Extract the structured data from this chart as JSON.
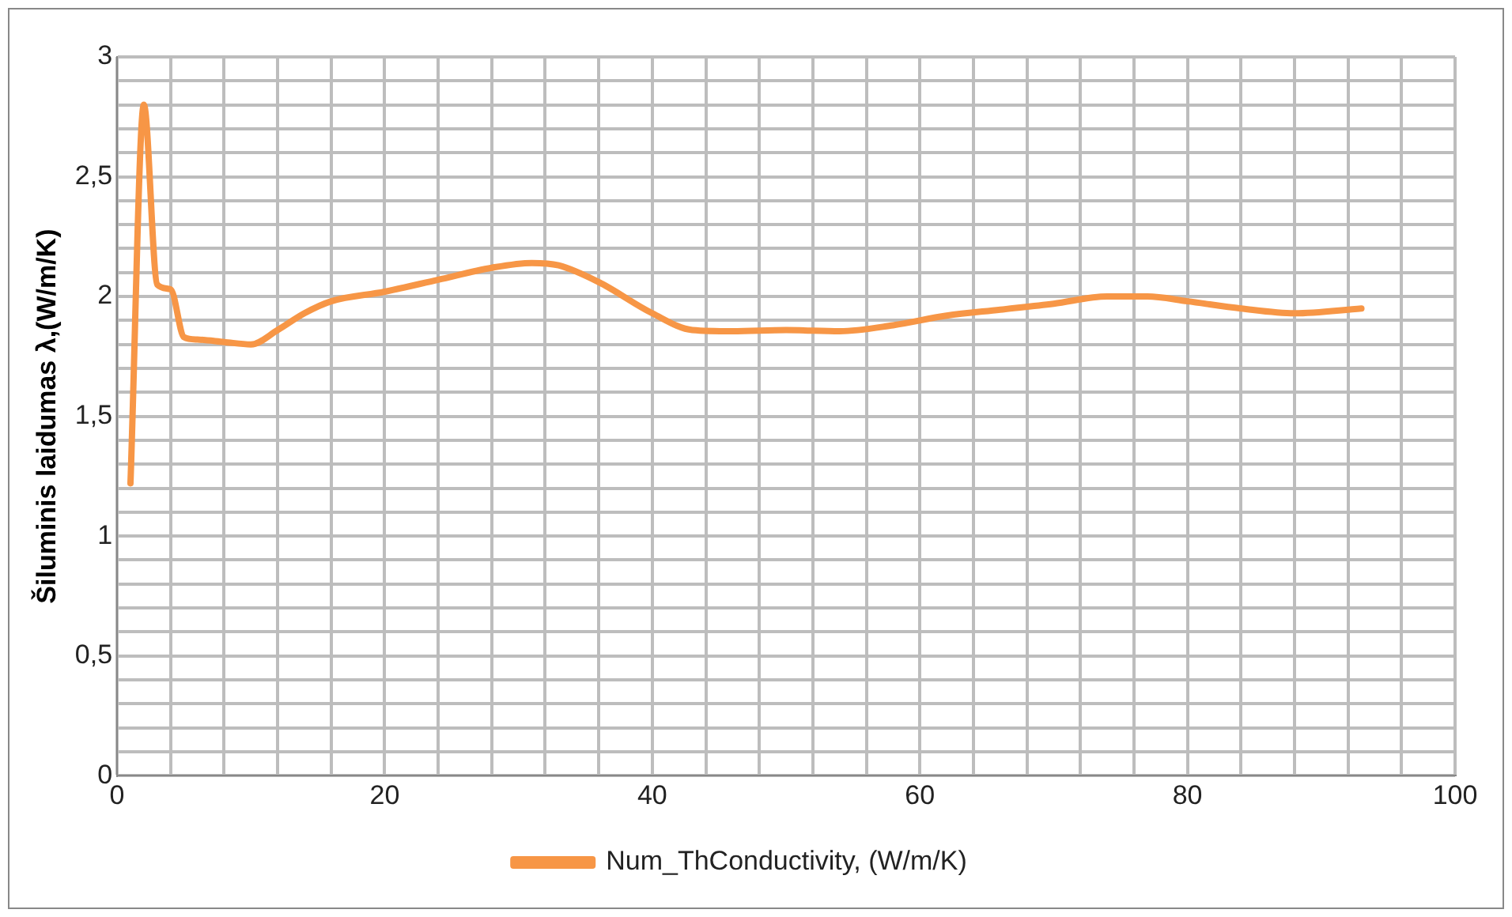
{
  "chart_data": {
    "type": "line",
    "ylabel": "Šiluminis laidumas λ,(W/m/K)",
    "x": [
      1,
      2,
      3,
      4,
      5,
      6,
      8,
      10,
      12,
      14,
      16,
      20,
      24,
      28,
      31,
      33,
      36,
      40,
      43,
      46,
      50,
      54,
      58,
      62,
      66,
      70,
      74,
      77,
      80,
      84,
      88,
      93
    ],
    "series": [
      {
        "name": "Num_ThConductivity, (W/m/K)",
        "color": "#f79646",
        "values": [
          1.22,
          2.8,
          2.05,
          2.03,
          1.83,
          1.82,
          1.81,
          1.8,
          1.86,
          1.93,
          1.98,
          2.02,
          2.07,
          2.12,
          2.14,
          2.13,
          2.06,
          1.93,
          1.86,
          1.855,
          1.86,
          1.855,
          1.88,
          1.92,
          1.945,
          1.97,
          2.0,
          2.0,
          1.98,
          1.95,
          1.93,
          1.95
        ]
      }
    ],
    "xlim": [
      0,
      100
    ],
    "xticks": [
      0,
      {
        "value": 4,
        "label": null
      },
      {
        "value": 8,
        "label": null
      },
      {
        "value": 12,
        "label": null
      },
      {
        "value": 16,
        "label": null
      },
      20,
      {
        "value": 24,
        "label": null
      },
      {
        "value": 28,
        "label": null
      },
      {
        "value": 32,
        "label": null
      },
      {
        "value": 36,
        "label": null
      },
      40,
      {
        "value": 44,
        "label": null
      },
      {
        "value": 48,
        "label": null
      },
      {
        "value": 52,
        "label": null
      },
      {
        "value": 56,
        "label": null
      },
      60,
      {
        "value": 64,
        "label": null
      },
      {
        "value": 68,
        "label": null
      },
      {
        "value": 72,
        "label": null
      },
      {
        "value": 76,
        "label": null
      },
      80,
      {
        "value": 84,
        "label": null
      },
      {
        "value": 88,
        "label": null
      },
      {
        "value": 92,
        "label": null
      },
      {
        "value": 96,
        "label": null
      },
      100
    ],
    "ylim": [
      0,
      3
    ],
    "yticks": [
      0,
      {
        "value": 0.1,
        "label": null
      },
      {
        "value": 0.2,
        "label": null
      },
      {
        "value": 0.3,
        "label": null
      },
      {
        "value": 0.4,
        "label": null
      },
      {
        "value": 0.5,
        "label": "0,5"
      },
      {
        "value": 0.6,
        "label": null
      },
      {
        "value": 0.7,
        "label": null
      },
      {
        "value": 0.8,
        "label": null
      },
      {
        "value": 0.9,
        "label": null
      },
      1,
      {
        "value": 1.1,
        "label": null
      },
      {
        "value": 1.2,
        "label": null
      },
      {
        "value": 1.3,
        "label": null
      },
      {
        "value": 1.4,
        "label": null
      },
      {
        "value": 1.5,
        "label": "1,5"
      },
      {
        "value": 1.6,
        "label": null
      },
      {
        "value": 1.7,
        "label": null
      },
      {
        "value": 1.8,
        "label": null
      },
      {
        "value": 1.9,
        "label": null
      },
      2,
      {
        "value": 2.1,
        "label": null
      },
      {
        "value": 2.2,
        "label": null
      },
      {
        "value": 2.3,
        "label": null
      },
      {
        "value": 2.4,
        "label": null
      },
      {
        "value": 2.5,
        "label": "2,5"
      },
      {
        "value": 2.6,
        "label": null
      },
      {
        "value": 2.7,
        "label": null
      },
      {
        "value": 2.8,
        "label": null
      },
      {
        "value": 2.9,
        "label": null
      },
      3
    ],
    "grid": true,
    "legend": "bottom",
    "marker": "none",
    "line_style": "solid"
  }
}
